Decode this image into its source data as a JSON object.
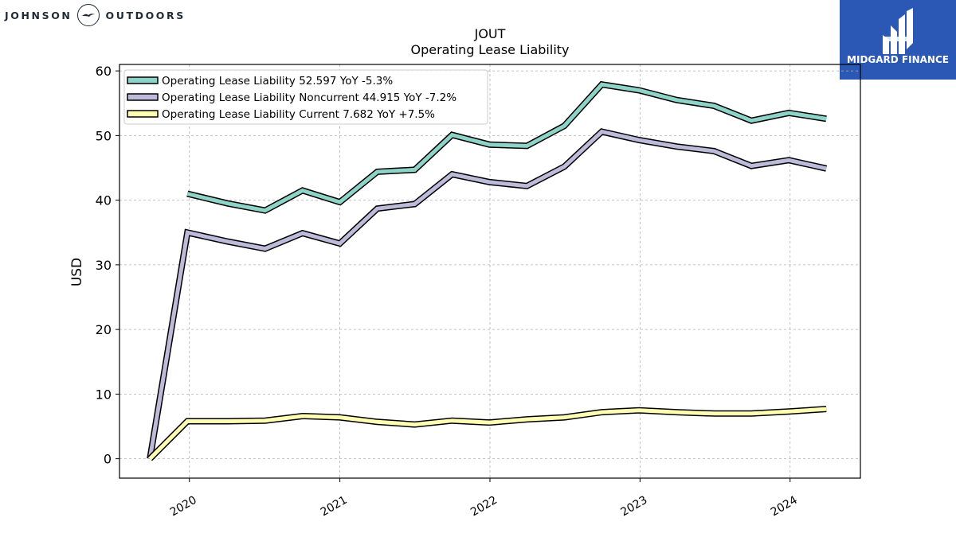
{
  "logos": {
    "left_word_1": "JOHNSON",
    "left_word_2": "OUTDOORS",
    "right_brand": "MIDGARD FINANCE",
    "right_brand_color": "#2b58b4"
  },
  "chart_data": {
    "type": "line",
    "title": "JOUT",
    "subtitle": "Operating Lease Liability",
    "xlabel": "",
    "ylabel": "USD",
    "ylim": [
      -3,
      61
    ],
    "yticks": [
      0,
      10,
      20,
      30,
      40,
      50,
      60
    ],
    "xlim": [
      "2019-07-15",
      "2024-06-20"
    ],
    "xticks": [
      {
        "date": "2020-01-01",
        "label": "2020"
      },
      {
        "date": "2021-01-01",
        "label": "2021"
      },
      {
        "date": "2022-01-01",
        "label": "2022"
      },
      {
        "date": "2023-01-01",
        "label": "2023"
      },
      {
        "date": "2024-01-01",
        "label": "2024"
      }
    ],
    "grid": true,
    "legend_position": "top-left",
    "series": [
      {
        "name": "Operating Lease Liability",
        "legend_label": "Operating Lease Liability  52.597 YoY -5.3%",
        "color": "#8dd3c7",
        "x": [
          "2019-12-27",
          "2020-04-03",
          "2020-07-03",
          "2020-10-02",
          "2021-01-01",
          "2021-04-02",
          "2021-07-02",
          "2021-10-01",
          "2021-12-31",
          "2022-04-01",
          "2022-07-01",
          "2022-09-30",
          "2022-12-30",
          "2023-03-31",
          "2023-06-30",
          "2023-09-29",
          "2023-12-29",
          "2024-03-29"
        ],
        "values": [
          41.0,
          39.5,
          38.4,
          41.5,
          39.7,
          44.4,
          44.7,
          50.1,
          48.6,
          48.4,
          51.5,
          57.9,
          57.0,
          55.5,
          54.6,
          52.3,
          53.5,
          52.6
        ]
      },
      {
        "name": "Operating Lease Liability Noncurrent",
        "legend_label": "Operating Lease Liability Noncurrent  44.915 YoY -7.2%",
        "color": "#bebada",
        "x": [
          "2019-09-27",
          "2019-12-27",
          "2020-04-03",
          "2020-07-03",
          "2020-10-02",
          "2021-01-01",
          "2021-04-02",
          "2021-07-02",
          "2021-10-01",
          "2021-12-31",
          "2022-04-01",
          "2022-07-01",
          "2022-09-30",
          "2022-12-30",
          "2023-03-31",
          "2023-06-30",
          "2023-09-29",
          "2023-12-29",
          "2024-03-29"
        ],
        "values": [
          0.0,
          35.0,
          33.6,
          32.5,
          34.9,
          33.3,
          38.7,
          39.4,
          44.0,
          42.8,
          42.2,
          45.2,
          50.6,
          49.3,
          48.3,
          47.6,
          45.3,
          46.2,
          44.9
        ]
      },
      {
        "name": "Operating Lease Liability Current",
        "legend_label": "Operating Lease Liability Current  7.682 YoY +7.5%",
        "color": "#ffffb3",
        "x": [
          "2019-09-27",
          "2019-12-27",
          "2020-04-03",
          "2020-07-03",
          "2020-10-02",
          "2021-01-01",
          "2021-04-02",
          "2021-07-02",
          "2021-10-01",
          "2021-12-31",
          "2022-04-01",
          "2022-07-01",
          "2022-09-30",
          "2022-12-30",
          "2023-03-31",
          "2023-06-30",
          "2023-09-29",
          "2023-12-29",
          "2024-03-29"
        ],
        "values": [
          0.0,
          5.8,
          5.8,
          5.9,
          6.6,
          6.4,
          5.7,
          5.3,
          5.9,
          5.6,
          6.1,
          6.4,
          7.2,
          7.5,
          7.2,
          7.0,
          7.0,
          7.3,
          7.7
        ]
      }
    ]
  }
}
